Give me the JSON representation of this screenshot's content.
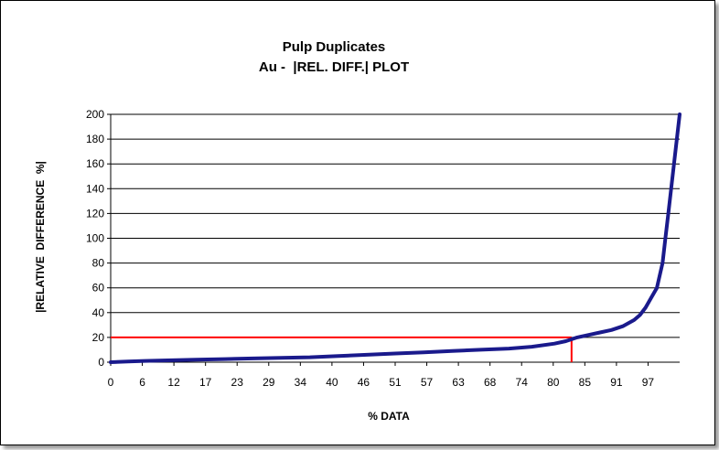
{
  "chart_data": {
    "type": "line",
    "title": "Pulp Duplicates",
    "subtitle": "Au -  |REL. DIFF.| PLOT",
    "xlabel": "% DATA",
    "ylabel": "|RELATIVE  DIFFERENCE  %|",
    "xlim": [
      0,
      100
    ],
    "ylim": [
      0,
      200
    ],
    "x_ticks": [
      "0",
      "6",
      "12",
      "17",
      "23",
      "29",
      "34",
      "40",
      "46",
      "51",
      "57",
      "63",
      "68",
      "74",
      "80",
      "85",
      "91",
      "97"
    ],
    "y_ticks": [
      0,
      20,
      40,
      60,
      80,
      100,
      120,
      140,
      160,
      180,
      200
    ],
    "grid": "horizontal",
    "series": [
      {
        "color": "#1a1a8c",
        "x": [
          0,
          3,
          6,
          10,
          15,
          20,
          25,
          30,
          35,
          40,
          45,
          50,
          55,
          60,
          65,
          70,
          74,
          78,
          80,
          82,
          84,
          86,
          88,
          90,
          92,
          93,
          94,
          95,
          96,
          97,
          97.5,
          98,
          98.5,
          99,
          99.5,
          100
        ],
        "y": [
          0,
          0.5,
          1,
          1.5,
          2,
          2.5,
          3,
          3.5,
          4,
          5,
          6,
          7,
          8,
          9,
          10,
          11,
          12.5,
          15,
          17,
          20,
          22,
          24,
          26,
          29,
          34,
          38,
          44,
          52,
          60,
          80,
          100,
          120,
          140,
          160,
          180,
          200
        ]
      }
    ],
    "reference_line": {
      "color": "#ff0000",
      "x": 81,
      "y": 20
    }
  }
}
